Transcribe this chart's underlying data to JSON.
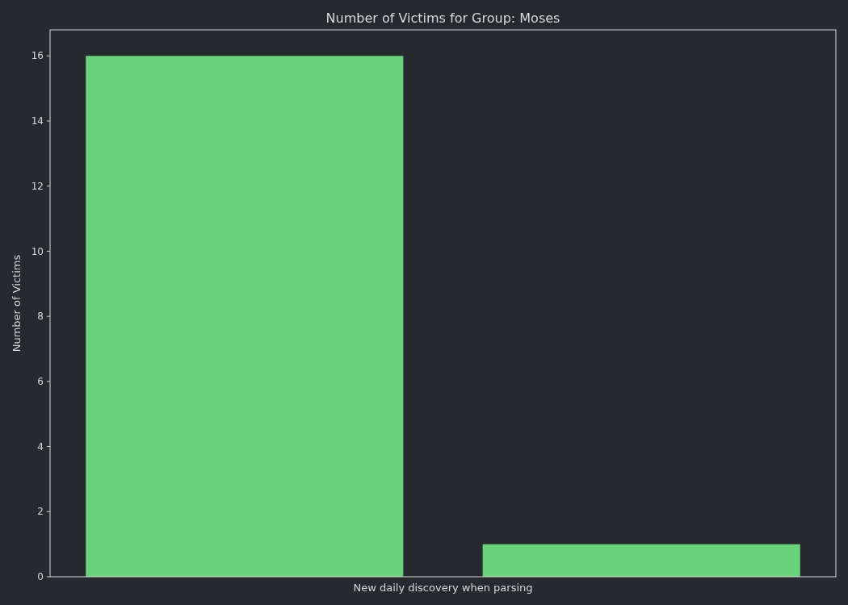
{
  "chart_data": {
    "type": "bar",
    "title": "Number of Victims for Group: Moses",
    "xlabel": "New daily discovery when parsing",
    "ylabel": "Number of Victims",
    "categories": [
      null,
      null
    ],
    "values": [
      16,
      1
    ],
    "color": "#6ad37a",
    "ylim": [
      0,
      16.8
    ],
    "yticks": [
      0,
      2,
      4,
      6,
      8,
      10,
      12,
      14,
      16
    ],
    "grid": false
  }
}
